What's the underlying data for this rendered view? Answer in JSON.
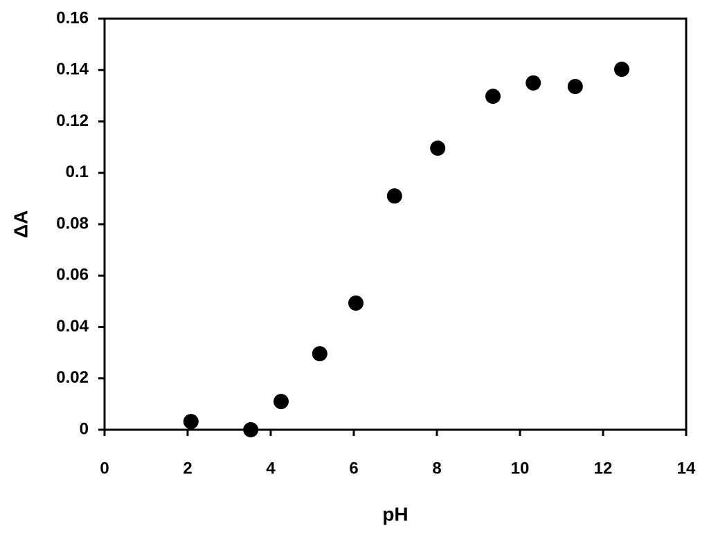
{
  "chart_data": {
    "type": "scatter",
    "xlabel": "pH",
    "ylabel": "ΔA",
    "x": [
      2.08,
      3.52,
      4.25,
      5.18,
      6.05,
      6.98,
      8.02,
      9.35,
      10.32,
      11.33,
      12.45
    ],
    "values": [
      0.0032,
      0.0,
      0.011,
      0.0296,
      0.0493,
      0.091,
      0.1096,
      0.1298,
      0.135,
      0.1336,
      0.1403
    ],
    "color": "#000000",
    "xlim": [
      0,
      14
    ],
    "xticks": [
      0,
      2,
      4,
      6,
      8,
      10,
      12,
      14
    ],
    "ylim": [
      0,
      0.16
    ],
    "yticks": [
      0,
      0.02,
      0.04,
      0.06,
      0.08,
      0.1,
      0.12,
      0.14,
      0.16
    ],
    "grid": false
  }
}
